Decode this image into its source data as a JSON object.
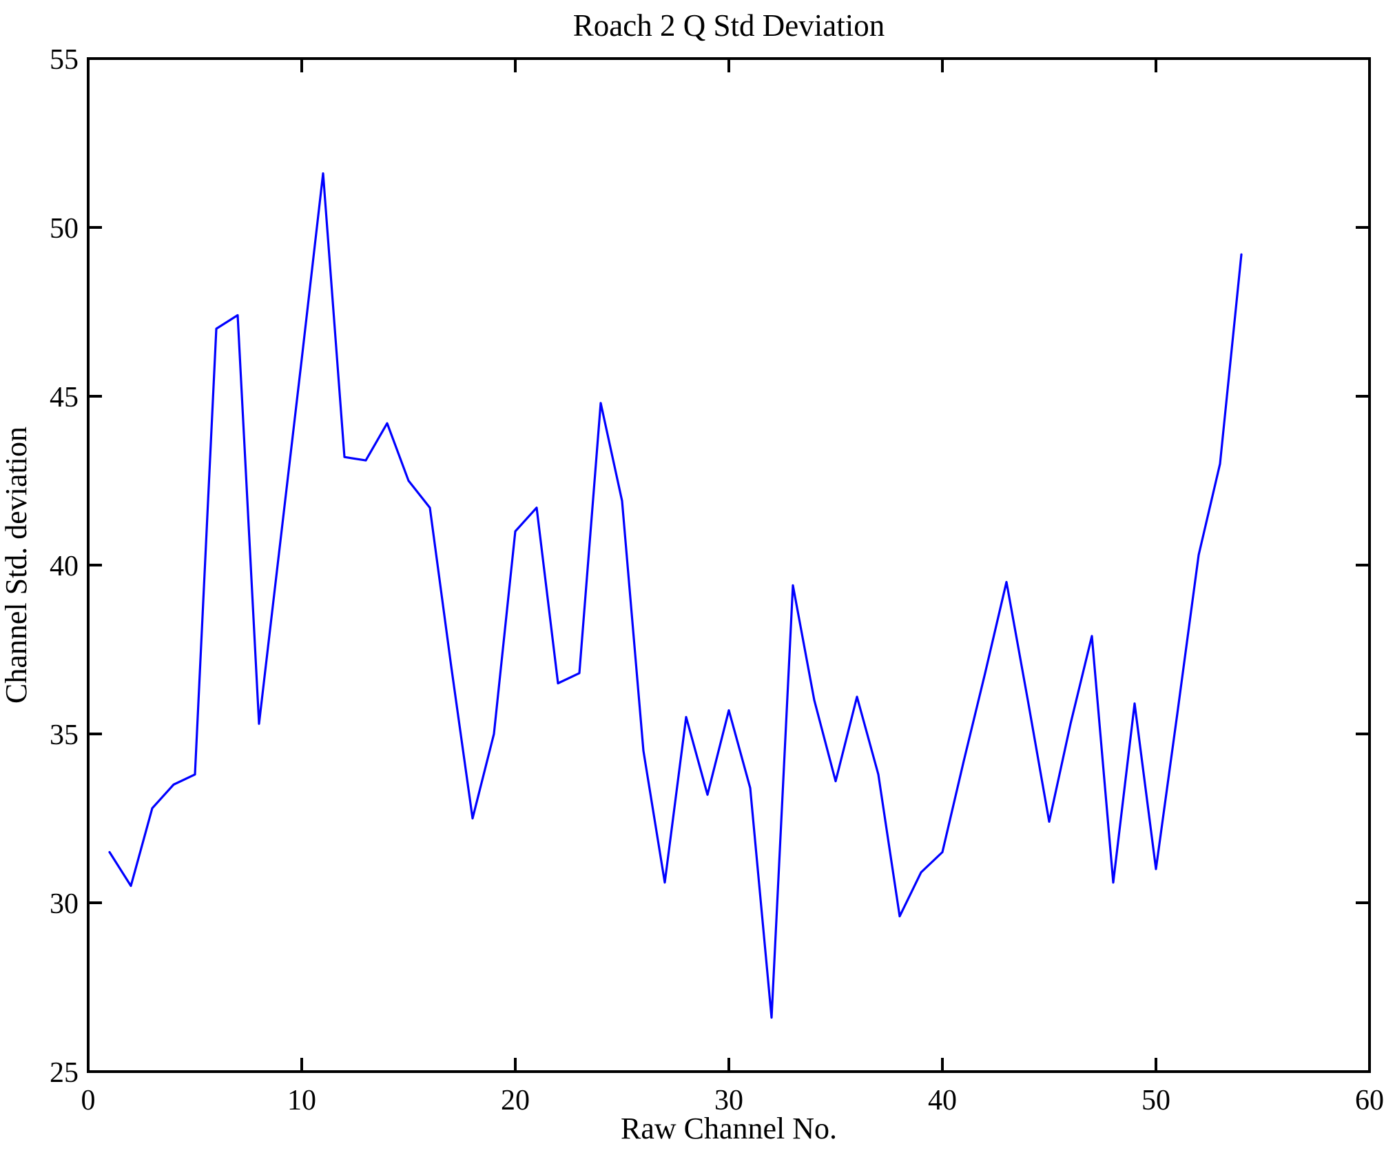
{
  "figure": {
    "background": "#ffffff"
  },
  "chart_data": {
    "type": "line",
    "title": "Roach 2 Q Std Deviation",
    "xlabel": "Raw Channel No.",
    "ylabel": "Channel Std. deviation",
    "xlim": [
      0,
      60
    ],
    "ylim": [
      25,
      55
    ],
    "xticks": [
      0,
      10,
      20,
      30,
      40,
      50,
      60
    ],
    "yticks": [
      25,
      30,
      35,
      40,
      45,
      50,
      55
    ],
    "grid": false,
    "legend": null,
    "line_color": "#0000ff",
    "axis_color": "#000000",
    "x": [
      1,
      2,
      3,
      4,
      5,
      6,
      7,
      8,
      9,
      10,
      11,
      12,
      13,
      14,
      15,
      16,
      17,
      18,
      19,
      20,
      21,
      22,
      23,
      24,
      25,
      26,
      27,
      28,
      29,
      30,
      31,
      32,
      33,
      34,
      35,
      36,
      37,
      38,
      39,
      40,
      41,
      42,
      43,
      44,
      45,
      46,
      47,
      48,
      49,
      50,
      51,
      52,
      53,
      54
    ],
    "values": [
      31.5,
      30.5,
      32.8,
      33.5,
      33.8,
      47.0,
      47.4,
      35.3,
      40.7,
      46.1,
      51.6,
      43.2,
      43.1,
      44.2,
      42.5,
      41.7,
      37.0,
      32.5,
      35.0,
      41.0,
      41.7,
      36.5,
      36.8,
      44.8,
      41.9,
      34.5,
      30.6,
      35.5,
      33.2,
      35.7,
      33.4,
      26.6,
      39.4,
      36.0,
      33.6,
      36.1,
      33.8,
      29.6,
      30.9,
      31.5,
      34.2,
      36.8,
      39.5,
      36.0,
      32.4,
      35.3,
      37.9,
      30.6,
      35.9,
      31.0,
      35.6,
      40.3,
      43.0,
      49.2
    ]
  }
}
